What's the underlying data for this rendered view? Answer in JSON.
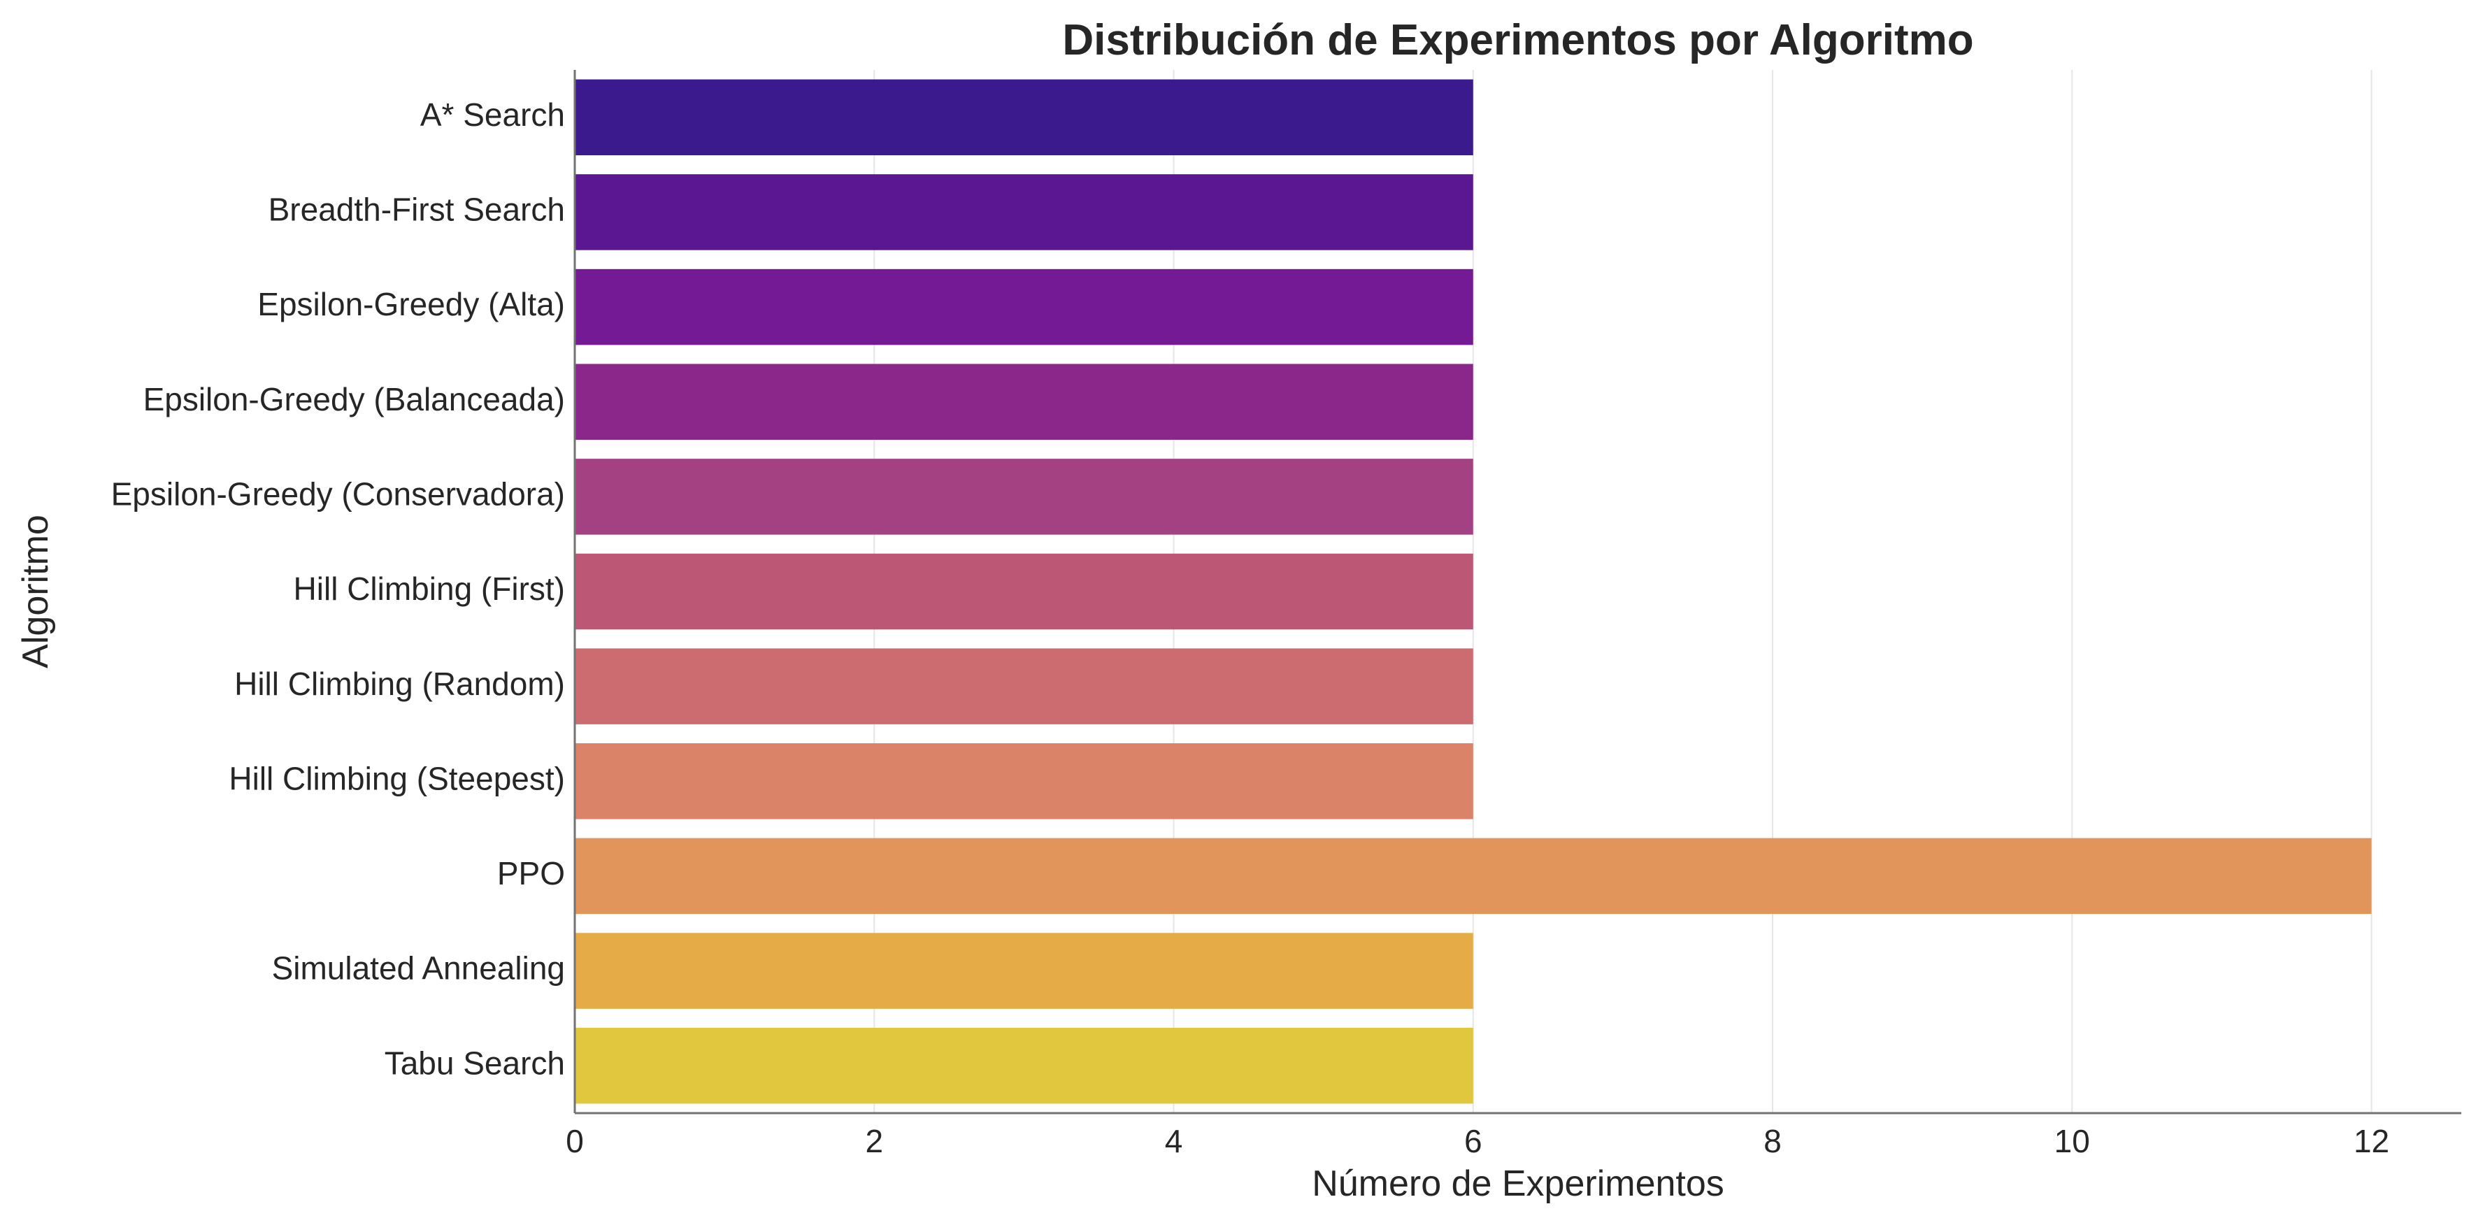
{
  "chart_data": {
    "type": "bar",
    "orientation": "horizontal",
    "title": "Distribución de Experimentos por Algoritmo",
    "xlabel": "Número de Experimentos",
    "ylabel": "Algoritmo",
    "xlim": [
      0,
      12.6
    ],
    "xticks": [
      0,
      2,
      4,
      6,
      8,
      10,
      12
    ],
    "grid": "x-axis vertical lines",
    "categories": [
      "A* Search",
      "Breadth-First Search",
      "Epsilon-Greedy (Alta)",
      "Epsilon-Greedy (Balanceada)",
      "Epsilon-Greedy (Conservadora)",
      "Hill Climbing (First)",
      "Hill Climbing (Random)",
      "Hill Climbing (Steepest)",
      "PPO",
      "Simulated Annealing",
      "Tabu Search"
    ],
    "values": [
      6,
      6,
      6,
      6,
      6,
      6,
      6,
      6,
      12,
      6,
      6
    ],
    "colors": [
      "#3a1a8c",
      "#5b1692",
      "#741a94",
      "#8b278b",
      "#a44182",
      "#bc5776",
      "#cd6c70",
      "#da8368",
      "#e1955a",
      "#e5ab46",
      "#e1c73d"
    ]
  }
}
